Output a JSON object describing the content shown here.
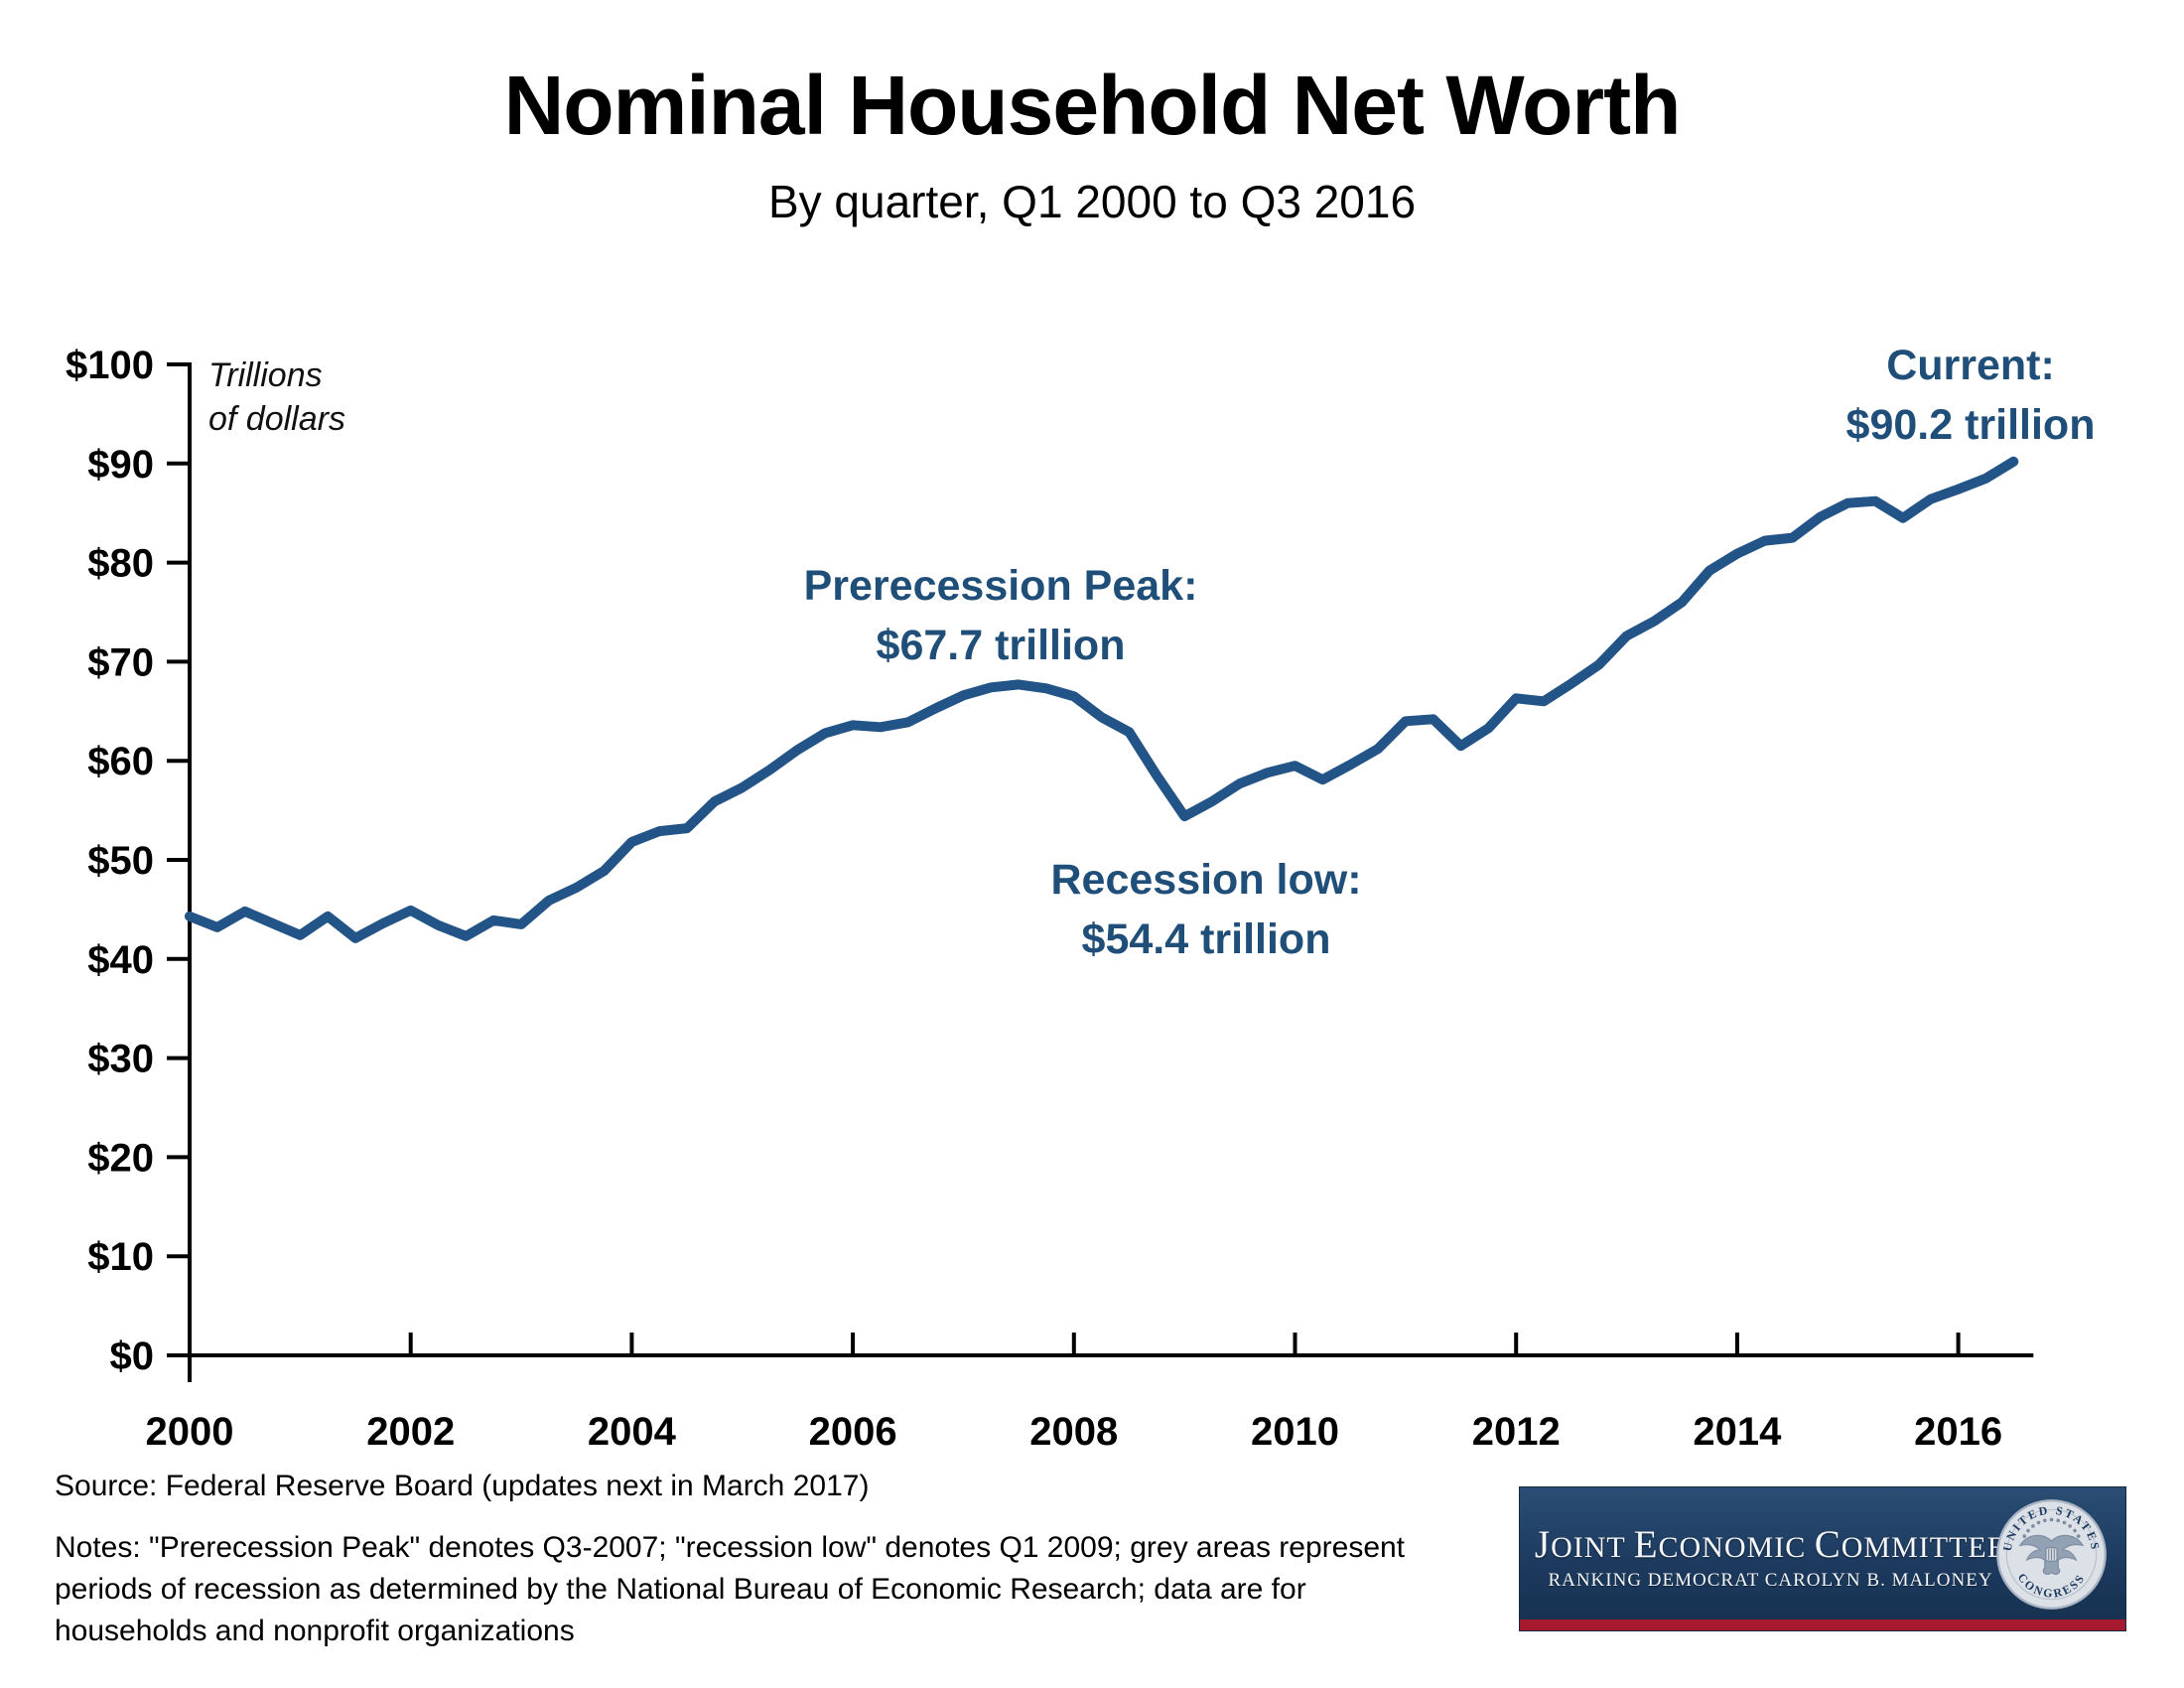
{
  "title": "Nominal Household Net Worth",
  "subtitle": "By quarter, Q1 2000 to Q3 2016",
  "unit_note_line1": "Trillions",
  "unit_note_line2": "of dollars",
  "chart_data": {
    "type": "line",
    "title": "Nominal Household Net Worth",
    "subtitle": "By quarter, Q1 2000 to Q3 2016",
    "ylabel": "Trillions of dollars",
    "frequency": "quarterly",
    "start_period": "2000 Q1",
    "end_period": "2016 Q3",
    "x_start_year": 2000,
    "quarter_step_years": 0.25,
    "x_ticks": [
      2000,
      2002,
      2004,
      2006,
      2008,
      2010,
      2012,
      2014,
      2016
    ],
    "y_ticks": [
      0,
      10,
      20,
      30,
      40,
      50,
      60,
      70,
      80,
      90,
      100
    ],
    "y_tick_prefix": "$",
    "ylim": [
      0,
      100
    ],
    "xlim": [
      2000,
      2016.6
    ],
    "grid": "off",
    "legend": "none",
    "line_color": "#235488",
    "annotation_color": "#1F4E79",
    "values": [
      44.3,
      43.2,
      44.8,
      43.6,
      42.4,
      44.3,
      42.1,
      43.6,
      44.9,
      43.4,
      42.3,
      43.9,
      43.5,
      45.9,
      47.2,
      48.9,
      51.8,
      52.9,
      53.2,
      55.9,
      57.3,
      59.1,
      61.1,
      62.8,
      63.6,
      63.4,
      63.9,
      65.3,
      66.6,
      67.4,
      67.7,
      67.3,
      66.5,
      64.4,
      62.9,
      58.5,
      54.4,
      55.9,
      57.7,
      58.8,
      59.5,
      58.1,
      59.6,
      61.2,
      64.0,
      64.2,
      61.5,
      63.3,
      66.3,
      66.0,
      67.8,
      69.7,
      72.6,
      74.1,
      76.0,
      79.2,
      80.9,
      82.2,
      82.5,
      84.6,
      86.0,
      86.2,
      84.5,
      86.4,
      87.4,
      88.5,
      90.2
    ],
    "annotations": [
      {
        "label": "Prerecession Peak:",
        "value": "$67.7 trillion",
        "at": "2007 Q3"
      },
      {
        "label": "Recession low:",
        "value": "$54.4 trillion",
        "at": "2009 Q1"
      },
      {
        "label": "Current:",
        "value": "$90.2 trillion",
        "at": "2016 Q3"
      }
    ]
  },
  "footer": {
    "source": "Source: Federal Reserve Board (updates next in March 2017)",
    "notes_lines": [
      "Notes: \"Prerecession Peak\" denotes Q3-2007; \"recession low\" denotes Q1 2009; grey areas represent",
      "periods of recession as determined by the National Bureau of Economic Research; data are for",
      "households and nonprofit organizations"
    ]
  },
  "logo": {
    "title": "JOINT ECONOMIC COMMITTEE",
    "subtitle": "RANKING DEMOCRAT CAROLYN B. MALONEY",
    "seal_top": "UNITED STATES",
    "seal_bottom": "CONGRESS",
    "bg_color": "#1c3a5e",
    "stripe_color": "#a6192e"
  }
}
